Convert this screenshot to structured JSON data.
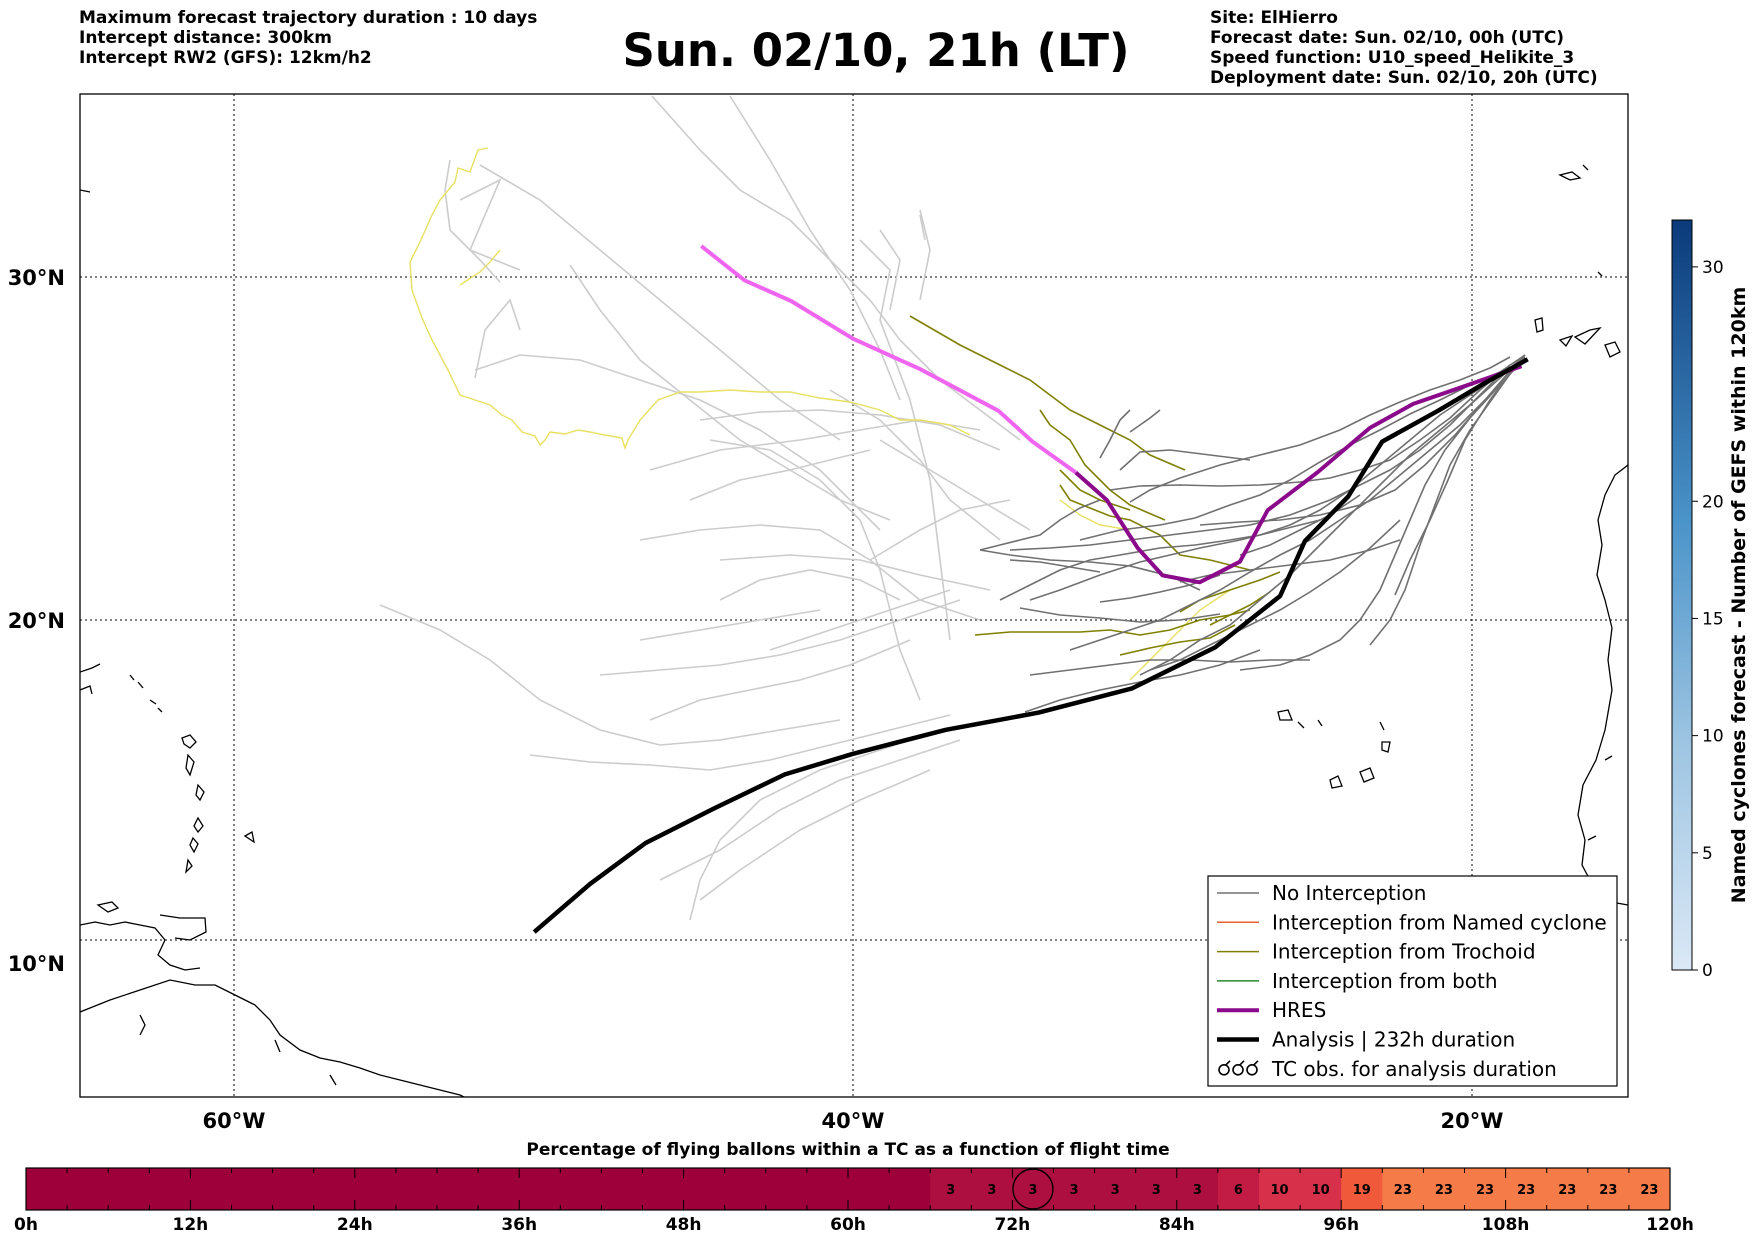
{
  "header": {
    "left": [
      "Maximum forecast trajectory duration : 10 days",
      "Intercept distance: 300km",
      "Intercept RW2 (GFS):  12km/h2"
    ],
    "title": "Sun. 02/10, 21h (LT)",
    "right": [
      "Site: ElHierro",
      "Forecast date: Sun. 02/10, 00h (UTC)",
      "Speed function: U10_speed_Helikite_3",
      "Deployment date: Sun. 02/10, 20h (UTC)"
    ]
  },
  "colors": {
    "no_interception": "#707070",
    "named_cyclone": "#e8602c",
    "trochoid": "#808000",
    "both": "#2a8a2a",
    "hres": "#8b0a8b",
    "hres_light": "#f065f0",
    "analysis": "#000000",
    "light_track": "#cccccc",
    "yellow_track": "#e8e060"
  },
  "chart_data": [
    {
      "type": "line",
      "title": "Sun. 02/10, 21h (LT)",
      "xlabel": "",
      "ylabel": "",
      "xlim": [
        -65,
        -15
      ],
      "ylim": [
        5,
        34.3
      ],
      "x_ticks": [
        -60,
        -40,
        -20
      ],
      "x_tick_labels": [
        "60°W",
        "40°W",
        "20°W"
      ],
      "y_ticks": [
        10,
        20,
        30
      ],
      "y_tick_labels": [
        "10°N",
        "20°N",
        "30°N"
      ],
      "grid": true,
      "legend_position": "lower-right",
      "legend": [
        "No Interception",
        "Interception from Named cyclone",
        "Interception from Trochoid",
        "Interception from both",
        "HRES",
        "Analysis | 232h duration",
        "TC obs. for analysis duration"
      ],
      "series": [
        {
          "name": "Analysis | 232h duration",
          "points": [
            [
              -50.3,
              10.9
            ],
            [
              -48.5,
              12.3
            ],
            [
              -46.7,
              13.5
            ],
            [
              -44.5,
              14.5
            ],
            [
              -42.2,
              15.5
            ],
            [
              -40,
              16.1
            ],
            [
              -37,
              16.8
            ],
            [
              -34,
              17.3
            ],
            [
              -31,
              18
            ],
            [
              -28.3,
              19.2
            ],
            [
              -26.2,
              20.7
            ],
            [
              -25.4,
              22.3
            ],
            [
              -24,
              23.6
            ],
            [
              -22.9,
              25.2
            ],
            [
              -21.1,
              26.1
            ],
            [
              -19.6,
              26.9
            ],
            [
              -18.2,
              27.6
            ]
          ]
        },
        {
          "name": "HRES",
          "points": [
            [
              -44.9,
              30.9
            ],
            [
              -43.5,
              29.9
            ],
            [
              -42,
              29.3
            ],
            [
              -40,
              28.2
            ],
            [
              -37.8,
              27.3
            ],
            [
              -35.3,
              26.1
            ],
            [
              -34.2,
              25.2
            ],
            [
              -32.8,
              24.3
            ],
            [
              -31.8,
              23.5
            ],
            [
              -30.8,
              22.1
            ],
            [
              -30,
              21.3
            ],
            [
              -28.8,
              21.1
            ],
            [
              -27.5,
              21.7
            ],
            [
              -26.6,
              23.2
            ],
            [
              -25,
              24.3
            ],
            [
              -23.3,
              25.6
            ],
            [
              -21.9,
              26.3
            ],
            [
              -20.3,
              26.8
            ],
            [
              -18.4,
              27.4
            ]
          ]
        }
      ]
    },
    {
      "type": "heatmap",
      "title": "",
      "colorbar_label": "Named cyclones forecast - Number of GEFS within 120km",
      "range": [
        0,
        32
      ],
      "ticks": [
        0,
        5,
        10,
        15,
        20,
        30
      ]
    },
    {
      "type": "bar",
      "title": "Percentage of flying ballons within a TC as a function of flight time",
      "xlabel": "",
      "ylabel": "",
      "tick_labels": [
        "0h",
        "12h",
        "24h",
        "36h",
        "48h",
        "60h",
        "72h",
        "84h",
        "96h",
        "108h",
        "120h"
      ],
      "x": [
        0,
        3,
        6,
        9,
        12,
        15,
        18,
        21,
        24,
        27,
        30,
        33,
        36,
        39,
        42,
        45,
        48,
        51,
        54,
        57,
        60,
        63,
        66,
        69,
        72,
        75,
        78,
        81,
        84,
        87,
        90,
        93,
        96,
        99,
        102,
        105,
        108,
        111,
        114,
        117
      ],
      "values": [
        0,
        0,
        0,
        0,
        0,
        0,
        0,
        0,
        0,
        0,
        0,
        0,
        0,
        0,
        0,
        0,
        0,
        0,
        0,
        0,
        0,
        0,
        3,
        3,
        3,
        3,
        3,
        3,
        3,
        6,
        10,
        10,
        19,
        23,
        23,
        23,
        23,
        23,
        23,
        23
      ],
      "marked_bin_hour": 72
    }
  ]
}
